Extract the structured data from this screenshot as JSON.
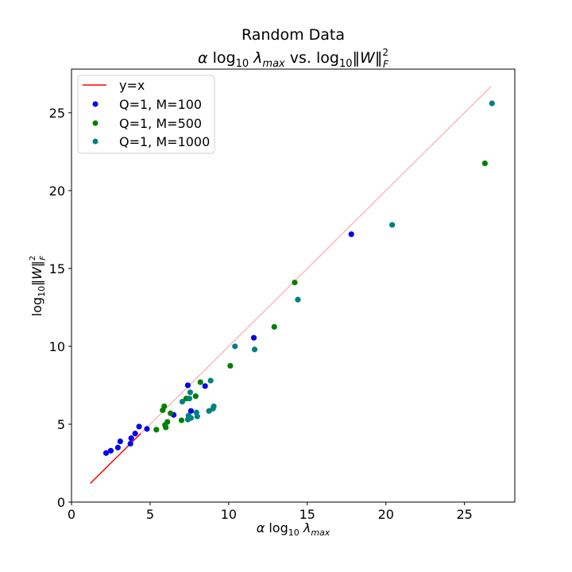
{
  "chart_data": {
    "type": "scatter",
    "title": "Random Data",
    "subtitle": {
      "alpha": "α",
      "log": "log",
      "sub10": "10",
      "lambda": "λ",
      "max": "max",
      "vs": "vs.",
      "norm_open": "‖",
      "W": "W",
      "norm_close": "‖",
      "sup2": "2",
      "subF": "F"
    },
    "xlabel": {
      "alpha": "α",
      "log": "log",
      "sub10": "10",
      "lambda": "λ",
      "max": "max"
    },
    "ylabel": {
      "log": "log",
      "sub10": "10",
      "norm_open": "‖",
      "W": "W",
      "norm_close": "‖",
      "sup2": "2",
      "subF": "F"
    },
    "xlim": [
      0,
      28.2
    ],
    "ylim": [
      0,
      27.8
    ],
    "x_ticks": [
      0,
      5,
      10,
      15,
      20,
      25
    ],
    "y_ticks": [
      0,
      5,
      10,
      15,
      20,
      25
    ],
    "legend_position": "top-left",
    "reference_line": {
      "label": "y=x",
      "color": "#ff0000",
      "x_start": 1.2,
      "x_end": 26.7,
      "fade_after": 4.4
    },
    "series": [
      {
        "name": "Q=1, M=100",
        "color": "#0000ee",
        "points": [
          {
            "x": 2.2,
            "y": 3.15
          },
          {
            "x": 2.5,
            "y": 3.3
          },
          {
            "x": 2.95,
            "y": 3.5
          },
          {
            "x": 3.1,
            "y": 3.9
          },
          {
            "x": 3.75,
            "y": 3.75
          },
          {
            "x": 3.8,
            "y": 4.1
          },
          {
            "x": 4.05,
            "y": 4.4
          },
          {
            "x": 4.3,
            "y": 4.85
          },
          {
            "x": 4.8,
            "y": 4.7
          },
          {
            "x": 6.5,
            "y": 5.6
          },
          {
            "x": 7.4,
            "y": 7.5
          },
          {
            "x": 7.6,
            "y": 5.85
          },
          {
            "x": 8.5,
            "y": 7.45
          },
          {
            "x": 11.6,
            "y": 10.55
          },
          {
            "x": 17.8,
            "y": 17.2
          }
        ]
      },
      {
        "name": "Q=1, M=500",
        "color": "#008000",
        "points": [
          {
            "x": 5.4,
            "y": 4.65
          },
          {
            "x": 5.8,
            "y": 5.9
          },
          {
            "x": 5.9,
            "y": 6.15
          },
          {
            "x": 5.95,
            "y": 4.95
          },
          {
            "x": 6.0,
            "y": 4.8
          },
          {
            "x": 6.1,
            "y": 5.15
          },
          {
            "x": 6.3,
            "y": 5.7
          },
          {
            "x": 7.0,
            "y": 5.25
          },
          {
            "x": 7.3,
            "y": 6.65
          },
          {
            "x": 7.55,
            "y": 5.4
          },
          {
            "x": 7.9,
            "y": 6.8
          },
          {
            "x": 8.2,
            "y": 7.7
          },
          {
            "x": 10.1,
            "y": 8.75
          },
          {
            "x": 12.9,
            "y": 11.25
          },
          {
            "x": 14.2,
            "y": 14.1
          },
          {
            "x": 26.3,
            "y": 21.75
          }
        ]
      },
      {
        "name": "Q=1, M=1000",
        "color": "#008080",
        "points": [
          {
            "x": 7.05,
            "y": 6.45
          },
          {
            "x": 7.4,
            "y": 5.3
          },
          {
            "x": 7.45,
            "y": 5.55
          },
          {
            "x": 7.5,
            "y": 6.65
          },
          {
            "x": 7.55,
            "y": 7.05
          },
          {
            "x": 7.6,
            "y": 5.4
          },
          {
            "x": 7.95,
            "y": 5.75
          },
          {
            "x": 8.0,
            "y": 5.5
          },
          {
            "x": 8.75,
            "y": 5.85
          },
          {
            "x": 8.85,
            "y": 7.8
          },
          {
            "x": 9.0,
            "y": 6.0
          },
          {
            "x": 9.05,
            "y": 6.15
          },
          {
            "x": 10.4,
            "y": 10.0
          },
          {
            "x": 11.65,
            "y": 9.8
          },
          {
            "x": 14.4,
            "y": 13.0
          },
          {
            "x": 20.4,
            "y": 17.8
          },
          {
            "x": 26.75,
            "y": 25.6
          }
        ]
      }
    ]
  }
}
